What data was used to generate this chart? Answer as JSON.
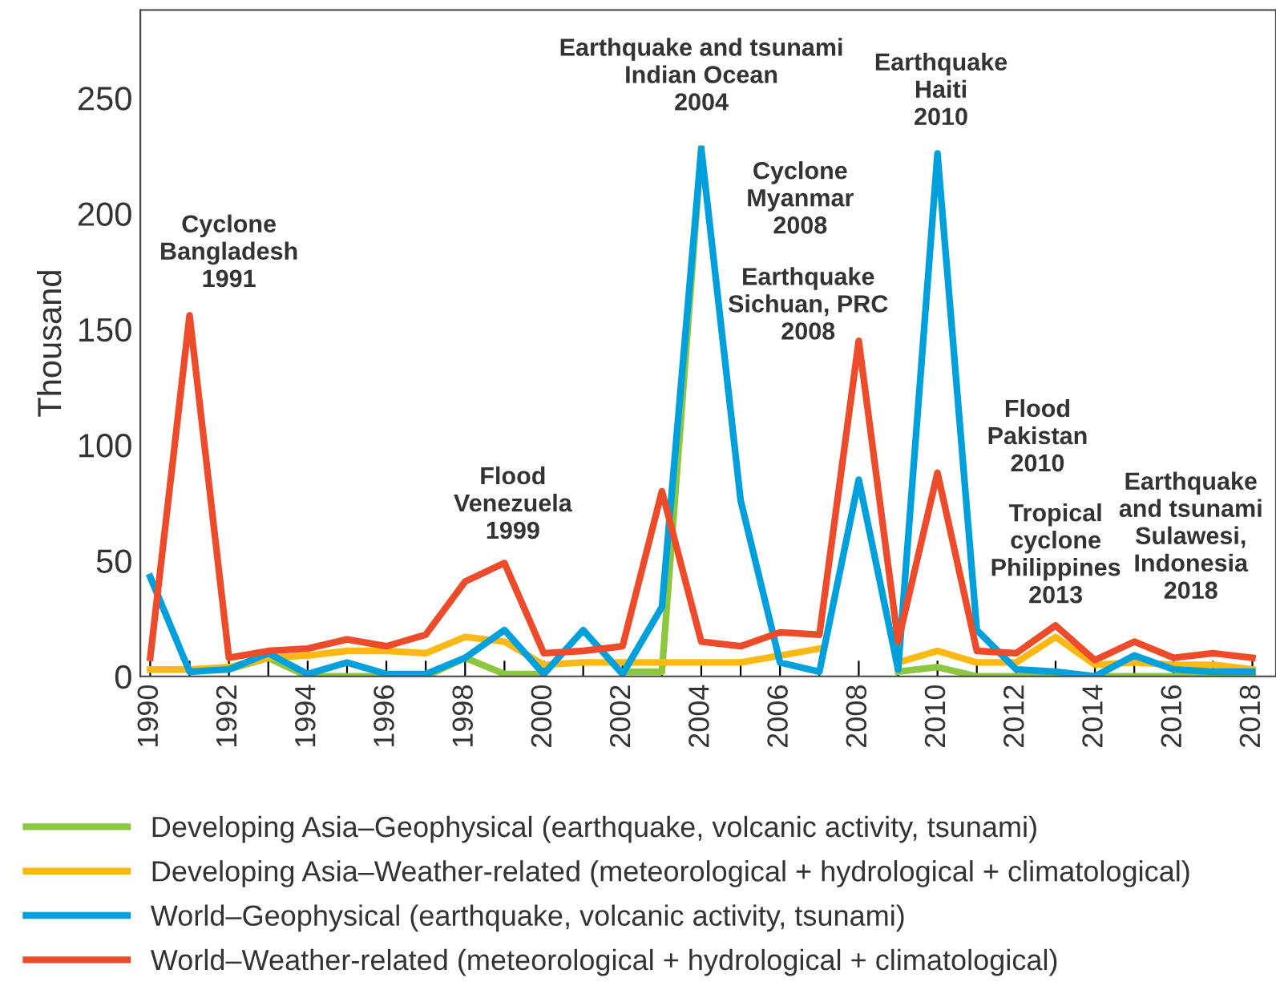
{
  "chart_data": {
    "type": "line",
    "ylabel": "Thousand",
    "x": [
      1990,
      1991,
      1992,
      1993,
      1994,
      1995,
      1996,
      1997,
      1998,
      1999,
      2000,
      2001,
      2002,
      2003,
      2004,
      2005,
      2006,
      2007,
      2008,
      2009,
      2010,
      2011,
      2012,
      2013,
      2014,
      2015,
      2016,
      2017,
      2018
    ],
    "series": [
      {
        "name": "Developing Asia–Geophysical (earthquake, volcanic activity, tsunami)",
        "color": "#8dc63f",
        "values": [
          3,
          3,
          3,
          8,
          0,
          0,
          0,
          0,
          8,
          1,
          1,
          null,
          2,
          2,
          228,
          null,
          null,
          null,
          null,
          2,
          4,
          0,
          0,
          0,
          0,
          0,
          0,
          0,
          0
        ]
      },
      {
        "name": "Developing Asia–Weather-related (meteorological + hydrological + climatological)",
        "color": "#fdb913",
        "values": [
          3,
          3,
          4,
          8,
          9,
          11,
          11,
          10,
          17,
          15,
          5,
          6,
          6,
          6,
          6,
          6,
          9,
          12,
          null,
          6,
          11,
          6,
          6,
          17,
          5,
          6,
          5,
          5,
          3
        ]
      },
      {
        "name": "World–Geophysical (earthquake, volcanic activity, tsunami)",
        "color": "#00a0dc",
        "values": [
          43,
          2,
          3,
          10,
          1,
          6,
          1,
          1,
          8,
          20,
          1,
          20,
          1,
          30,
          228,
          76,
          6,
          2,
          85,
          3,
          226,
          20,
          3,
          2,
          0,
          9,
          3,
          2,
          2
        ]
      },
      {
        "name": "World–Weather-related (meteorological + hydrological + climatological)",
        "color": "#ee4b2b",
        "values": [
          8,
          156,
          8,
          11,
          12,
          16,
          13,
          18,
          41,
          49,
          10,
          11,
          13,
          80,
          15,
          13,
          19,
          18,
          145,
          15,
          88,
          11,
          10,
          22,
          7,
          15,
          8,
          10,
          8
        ]
      }
    ],
    "xlim": [
      1989.75,
      2018.6
    ],
    "ylim": [
      0,
      288
    ],
    "xticks": [
      1990,
      {
        "value": 1991,
        "label": null
      },
      1992,
      {
        "value": 1993,
        "label": null
      },
      1994,
      {
        "value": 1995,
        "label": null
      },
      1996,
      {
        "value": 1997,
        "label": null
      },
      1998,
      {
        "value": 1999,
        "label": null
      },
      2000,
      {
        "value": 2001,
        "label": null
      },
      2002,
      {
        "value": 2003,
        "label": null
      },
      2004,
      {
        "value": 2005,
        "label": null
      },
      2006,
      {
        "value": 2007,
        "label": null
      },
      2008,
      {
        "value": 2009,
        "label": null
      },
      2010,
      {
        "value": 2011,
        "label": null
      },
      2012,
      {
        "value": 2013,
        "label": null
      },
      2014,
      {
        "value": 2015,
        "label": null
      },
      2016,
      {
        "value": 2017,
        "label": null
      },
      2018
    ],
    "yticks": [
      0,
      50,
      100,
      150,
      200,
      250
    ],
    "annotations": [
      "Cyclone\nBangladesh\n1991",
      "Flood\nVenezuela\n1999",
      "Earthquake and tsunami\nIndian Ocean\n2004",
      "Cyclone\nMyanmar\n2008",
      "Earthquake\nSichuan, PRC\n2008",
      "Earthquake\nHaiti\n2010",
      "Flood\nPakistan\n2010",
      "Tropical\ncyclone\nPhilippines\n2013",
      "Earthquake\nand tsunami\nSulawesi,\nIndonesia\n2018"
    ],
    "grid": false,
    "legend": "bottom",
    "line_style": "solid",
    "marker": "none"
  }
}
